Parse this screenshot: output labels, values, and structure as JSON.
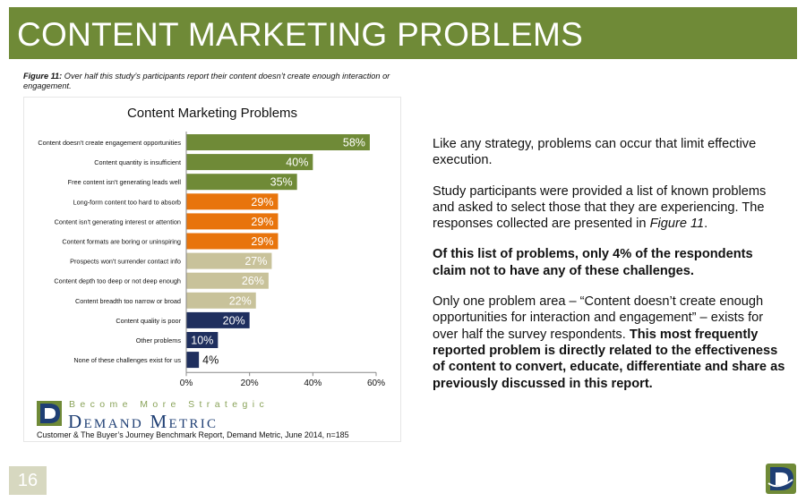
{
  "header": {
    "title": "CONTENT MARKETING PROBLEMS",
    "accent": "#6f8a37"
  },
  "figure": {
    "label": "Figure 11:",
    "caption": "Over half this study’s participants report their content doesn’t create enough interaction or engagement."
  },
  "chart_data": {
    "type": "bar",
    "orientation": "horizontal",
    "title": "Content Marketing Problems",
    "categories": [
      "Content doesn't create engagement opportunities",
      "Content quantity is insufficient",
      "Free content isn't generating leads well",
      "Long-form content too hard to absorb",
      "Content isn't generating interest or attention",
      "Content formats are boring or uninspiring",
      "Prospects won't surrender contact info",
      "Content depth too deep or not deep enough",
      "Content breadth too narrow or broad",
      "Content quality is poor",
      "Other problems",
      "None of these challenges exist for us"
    ],
    "values": [
      58,
      40,
      35,
      29,
      29,
      29,
      27,
      26,
      22,
      20,
      10,
      4
    ],
    "value_labels": [
      "58%",
      "40%",
      "35%",
      "29%",
      "29%",
      "29%",
      "27%",
      "26%",
      "22%",
      "20%",
      "10%",
      "4%"
    ],
    "colors": [
      "#6f8a37",
      "#6f8a37",
      "#6f8a37",
      "#e8740c",
      "#e8740c",
      "#e8740c",
      "#c8c29a",
      "#c8c29a",
      "#c8c29a",
      "#1f2f5e",
      "#1f2f5e",
      "#1f2f5e"
    ],
    "xlim": [
      0,
      60
    ],
    "xticks": [
      "0%",
      "20%",
      "40%",
      "60%"
    ],
    "grid": false
  },
  "logo": {
    "tagline": "Become More Strategic",
    "name": "Demand Metric"
  },
  "source": "Customer & The Buyer’s Journey Benchmark Report, Demand Metric, June 2014, n=185",
  "body": {
    "p1": "Like any strategy, problems can occur that limit effective execution.",
    "p2_a": "Study participants were provided a list of known problems and asked to select those that they are experiencing. The responses collected are presented in ",
    "p2_ref": "Figure 11",
    "p2_b": ".",
    "p3": "Of this list of problems, only 4% of the respondents claim not to have any of these challenges.",
    "p4_a": "Only one problem area – “Content doesn’t create enough opportunities for interaction and engagement” – exists for over half the survey respondents. ",
    "p4_b": "This most frequently reported problem is directly related to the effectiveness of content to convert, educate, differentiate and share as previously discussed in this report."
  },
  "page": {
    "number": "16"
  }
}
